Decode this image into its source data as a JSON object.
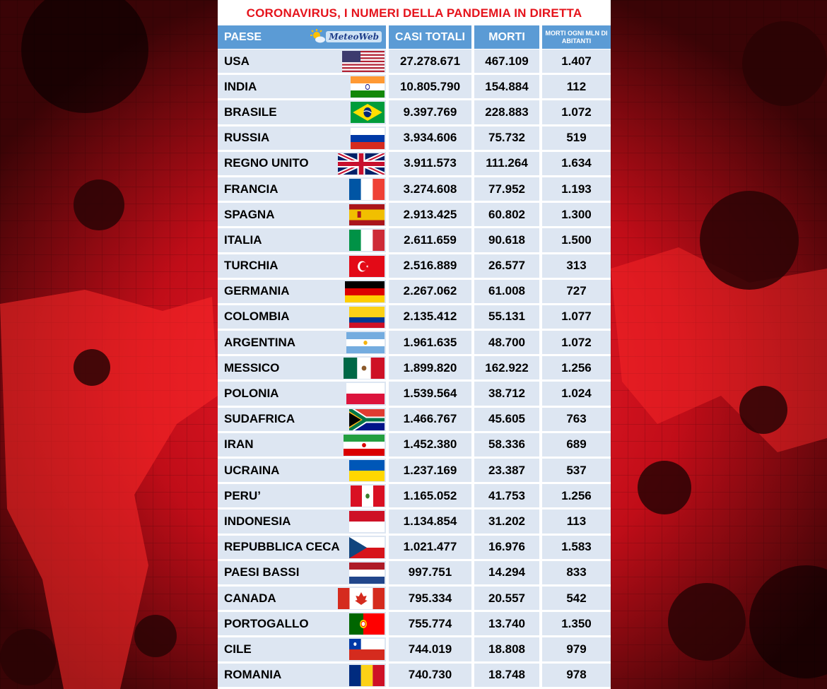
{
  "title": "CORONAVIRUS, I NUMERI DELLA PANDEMIA IN DIRETTA",
  "logo": "MeteoWeb",
  "colors": {
    "title": "#e5131b",
    "header_bg": "#5b9bd5",
    "row_bg": "#dde6f2"
  },
  "chart_data": {
    "type": "table",
    "columns": [
      "PAESE",
      "CASI TOTALI",
      "MORTI",
      "MORTI OGNI MLN DI ABITANTI"
    ],
    "rows": [
      {
        "country": "USA",
        "flag": "usa-flag",
        "cases": "27.278.671",
        "deaths": "467.109",
        "per_mln": "1.407"
      },
      {
        "country": "INDIA",
        "flag": "india-flag",
        "cases": "10.805.790",
        "deaths": "154.884",
        "per_mln": "112"
      },
      {
        "country": "BRASILE",
        "flag": "brazil-flag",
        "cases": "9.397.769",
        "deaths": "228.883",
        "per_mln": "1.072"
      },
      {
        "country": "RUSSIA",
        "flag": "russia-flag",
        "cases": "3.934.606",
        "deaths": "75.732",
        "per_mln": "519"
      },
      {
        "country": "REGNO UNITO",
        "flag": "uk-flag",
        "cases": "3.911.573",
        "deaths": "111.264",
        "per_mln": "1.634"
      },
      {
        "country": "FRANCIA",
        "flag": "france-flag",
        "cases": "3.274.608",
        "deaths": "77.952",
        "per_mln": "1.193"
      },
      {
        "country": "SPAGNA",
        "flag": "spain-flag",
        "cases": "2.913.425",
        "deaths": "60.802",
        "per_mln": "1.300"
      },
      {
        "country": "ITALIA",
        "flag": "italy-flag",
        "cases": "2.611.659",
        "deaths": "90.618",
        "per_mln": "1.500"
      },
      {
        "country": "TURCHIA",
        "flag": "turkey-flag",
        "cases": "2.516.889",
        "deaths": "26.577",
        "per_mln": "313"
      },
      {
        "country": "GERMANIA",
        "flag": "germany-flag",
        "cases": "2.267.062",
        "deaths": "61.008",
        "per_mln": "727"
      },
      {
        "country": "COLOMBIA",
        "flag": "colombia-flag",
        "cases": "2.135.412",
        "deaths": "55.131",
        "per_mln": "1.077"
      },
      {
        "country": "ARGENTINA",
        "flag": "argentina-flag",
        "cases": "1.961.635",
        "deaths": "48.700",
        "per_mln": "1.072"
      },
      {
        "country": "MESSICO",
        "flag": "mexico-flag",
        "cases": "1.899.820",
        "deaths": "162.922",
        "per_mln": "1.256"
      },
      {
        "country": "POLONIA",
        "flag": "poland-flag",
        "cases": "1.539.564",
        "deaths": "38.712",
        "per_mln": "1.024"
      },
      {
        "country": "SUDAFRICA",
        "flag": "south-africa-flag",
        "cases": "1.466.767",
        "deaths": "45.605",
        "per_mln": "763"
      },
      {
        "country": "IRAN",
        "flag": "iran-flag",
        "cases": "1.452.380",
        "deaths": "58.336",
        "per_mln": "689"
      },
      {
        "country": "UCRAINA",
        "flag": "ukraine-flag",
        "cases": "1.237.169",
        "deaths": "23.387",
        "per_mln": "537"
      },
      {
        "country": "PERU’",
        "flag": "peru-flag",
        "cases": "1.165.052",
        "deaths": "41.753",
        "per_mln": "1.256"
      },
      {
        "country": "INDONESIA",
        "flag": "indonesia-flag",
        "cases": "1.134.854",
        "deaths": "31.202",
        "per_mln": "113"
      },
      {
        "country": "REPUBBLICA CECA",
        "flag": "czech-flag",
        "cases": "1.021.477",
        "deaths": "16.976",
        "per_mln": "1.583"
      },
      {
        "country": "PAESI BASSI",
        "flag": "netherlands-flag",
        "cases": "997.751",
        "deaths": "14.294",
        "per_mln": "833"
      },
      {
        "country": "CANADA",
        "flag": "canada-flag",
        "cases": "795.334",
        "deaths": "20.557",
        "per_mln": "542"
      },
      {
        "country": "PORTOGALLO",
        "flag": "portugal-flag",
        "cases": "755.774",
        "deaths": "13.740",
        "per_mln": "1.350"
      },
      {
        "country": "CILE",
        "flag": "chile-flag",
        "cases": "744.019",
        "deaths": "18.808",
        "per_mln": "979"
      },
      {
        "country": "ROMANIA",
        "flag": "romania-flag",
        "cases": "740.730",
        "deaths": "18.748",
        "per_mln": "978"
      }
    ]
  }
}
